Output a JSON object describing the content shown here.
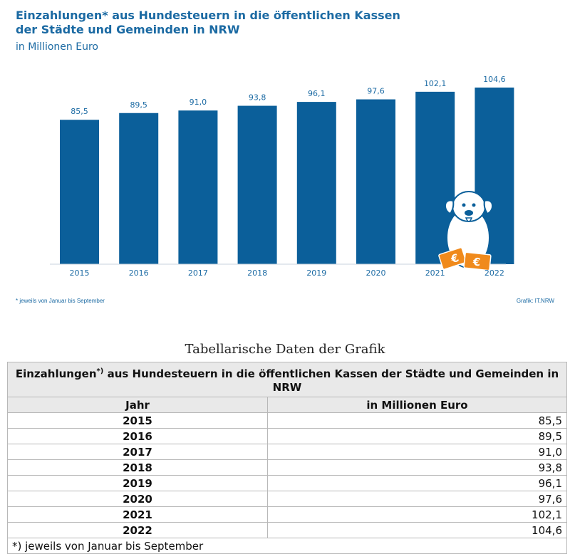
{
  "chart_data": {
    "type": "bar",
    "title_line1": "Einzahlungen* aus Hundesteuern in die öffentlichen Kassen",
    "title_line2": "der Städte und Gemeinden in NRW",
    "subtitle": "in Millionen Euro",
    "categories": [
      "2015",
      "2016",
      "2017",
      "2018",
      "2019",
      "2020",
      "2021",
      "2022"
    ],
    "values": [
      85.5,
      89.5,
      91.0,
      93.8,
      96.1,
      97.6,
      102.1,
      104.6
    ],
    "value_labels": [
      "85,5",
      "89,5",
      "91,0",
      "93,8",
      "96,1",
      "97,6",
      "102,1",
      "104,6"
    ],
    "ylim": [
      0,
      110
    ],
    "bar_color": "#0b5f9a",
    "footnote": "* jeweils von Januar bis September",
    "source": "Grafik: IT.NRW"
  },
  "table": {
    "caption": "Tabellarische Daten der Grafik",
    "title_main": "Einzahlungen",
    "title_sup": "*)",
    "title_rest": " aus Hundesteuern in die öffentlichen Kassen der Städte und Gemeinden in NRW",
    "col_year": "Jahr",
    "col_value": "in Millionen Euro",
    "rows": [
      {
        "year": "2015",
        "value": "85,5"
      },
      {
        "year": "2016",
        "value": "89,5"
      },
      {
        "year": "2017",
        "value": "91,0"
      },
      {
        "year": "2018",
        "value": "93,8"
      },
      {
        "year": "2019",
        "value": "96,1"
      },
      {
        "year": "2020",
        "value": "97,6"
      },
      {
        "year": "2021",
        "value": "102,1"
      },
      {
        "year": "2022",
        "value": "104,6"
      }
    ],
    "note": "*) jeweils von Januar bis September"
  }
}
